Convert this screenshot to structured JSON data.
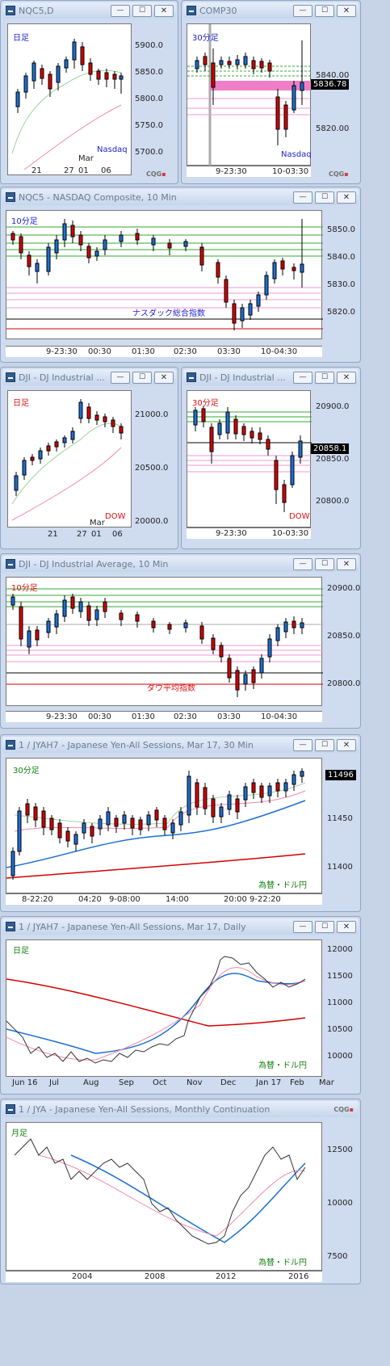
{
  "app": {
    "logo": "CQG"
  },
  "windows": [
    {
      "id": "w1",
      "title": "NQC5,D",
      "buttons": [
        "—",
        "☐",
        "✕"
      ],
      "tag": "日足",
      "tag_color": "#1f1fd0",
      "watermark": "Nasdaq",
      "watermark_color": "#1f1fd0",
      "yticks": [
        "5900.0",
        "5850.0",
        "5800.0",
        "5750.0",
        "5700.0"
      ],
      "xticks": [
        "21",
        "27",
        "01",
        "06"
      ],
      "xsub": "Mar"
    },
    {
      "id": "w2",
      "title": "COMP30",
      "buttons": [
        "—",
        "☐",
        "✕"
      ],
      "tag": "30分足",
      "tag_color": "#1f1fd0",
      "watermark": "Nasdaq",
      "watermark_color": "#1f1fd0",
      "yticks": [
        "5840.00",
        "5820.00"
      ],
      "price": "5836.78",
      "xticks": [
        "9-23:30",
        "10-03:30"
      ]
    },
    {
      "id": "w3",
      "title": "NQC5 - NASDAQ Composite, 10 Min",
      "buttons": [
        "—",
        "☐",
        "✕"
      ],
      "tag": "10分足",
      "tag_color": "#1f1fd0",
      "watermark": "ナスダック総合指数",
      "watermark_color": "#1f1fd0",
      "yticks": [
        "5850.0",
        "5840.0",
        "5830.0",
        "5820.0"
      ],
      "xticks": [
        "9-23:30",
        "00:30",
        "01:30",
        "02:30",
        "03:30",
        "10-04:30"
      ]
    },
    {
      "id": "w4",
      "title": "DJI - DJ Industrial ...",
      "buttons": [
        "—",
        "☐",
        "✕"
      ],
      "tag": "日足",
      "tag_color": "#e01010",
      "watermark": "DOW",
      "watermark_color": "#e01010",
      "yticks": [
        "21000.0",
        "20500.0",
        "20000.0"
      ],
      "xticks": [
        "21",
        "27",
        "01",
        "06"
      ],
      "xsub": "Mar"
    },
    {
      "id": "w5",
      "title": "DJI - DJ Industrial ...",
      "buttons": [
        "—",
        "☐",
        "✕"
      ],
      "tag": "30分足",
      "tag_color": "#e01010",
      "watermark": "DOW",
      "watermark_color": "#e01010",
      "yticks": [
        "20900.0",
        "20850.0",
        "20800.0"
      ],
      "price": "20858.1",
      "xticks": [
        "9-23:30",
        "10-03:30"
      ]
    },
    {
      "id": "w6",
      "title": "DJI - DJ Industrial Average, 10 Min",
      "buttons": [
        "—",
        "☐",
        "✕"
      ],
      "tag": "10分足",
      "tag_color": "#e01010",
      "watermark": "ダウ平均指数",
      "watermark_color": "#e01010",
      "yticks": [
        "20900.0",
        "20850.0",
        "20800.0"
      ],
      "xticks": [
        "9-23:30",
        "00:30",
        "01:30",
        "02:30",
        "03:30",
        "10-04:30"
      ]
    },
    {
      "id": "w7",
      "title": "1 / JYAH7 - Japanese Yen-All Sessions, Mar 17, 30 Min",
      "buttons": [
        "—",
        "☐",
        "✕"
      ],
      "tag": "30分足",
      "tag_color": "#108010",
      "watermark": "為替・ドル円",
      "watermark_color": "#108010",
      "yticks": [
        "11500",
        "11450",
        "11400"
      ],
      "price": "11496",
      "xticks": [
        "8-22:20",
        "04:20",
        "9-08:00",
        "14:00",
        "20:00",
        "9-22:20"
      ]
    },
    {
      "id": "w8",
      "title": "1 / JYAH7 - Japanese Yen-All Sessions, Mar 17, Daily",
      "buttons": [
        "—",
        "☐",
        "✕"
      ],
      "tag": "日足",
      "tag_color": "#108010",
      "watermark": "為替・ドル円",
      "watermark_color": "#108010",
      "yticks": [
        "12000",
        "11500",
        "11000",
        "10500",
        "10000"
      ],
      "xticks": [
        "Jun 16",
        "Jul",
        "Aug",
        "Sep",
        "Oct",
        "Nov",
        "Dec",
        "Jan 17",
        "Feb",
        "Mar"
      ]
    },
    {
      "id": "w9",
      "title": "1 / JYA - Japanese Yen-All Sessions, Monthly Continuation",
      "buttons": [
        "—",
        "☐",
        "✕"
      ],
      "tag": "月足",
      "tag_color": "#108010",
      "watermark": "為替・ドル円",
      "watermark_color": "#108010",
      "yticks": [
        "12500",
        "10000",
        "7500"
      ],
      "xticks": [
        "2004",
        "2008",
        "2012",
        "2016"
      ]
    }
  ]
}
